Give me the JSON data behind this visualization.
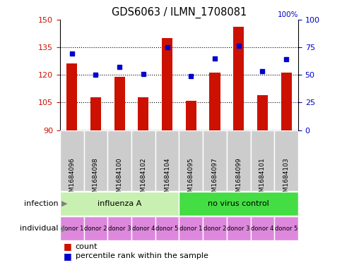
{
  "title": "GDS6063 / ILMN_1708081",
  "samples": [
    "GSM1684096",
    "GSM1684098",
    "GSM1684100",
    "GSM1684102",
    "GSM1684104",
    "GSM1684095",
    "GSM1684097",
    "GSM1684099",
    "GSM1684101",
    "GSM1684103"
  ],
  "counts": [
    126,
    108,
    119,
    108,
    140,
    106,
    121,
    146,
    109,
    121
  ],
  "percentiles": [
    69,
    50,
    57,
    51,
    75,
    49,
    65,
    76,
    53,
    64
  ],
  "ylim_left": [
    90,
    150
  ],
  "ylim_right": [
    0,
    100
  ],
  "yticks_left": [
    90,
    105,
    120,
    135,
    150
  ],
  "yticks_right": [
    0,
    25,
    50,
    75,
    100
  ],
  "hlines": [
    105,
    120,
    135
  ],
  "infection_groups": [
    {
      "label": "influenza A",
      "start": 0,
      "end": 5,
      "color": "#c8f0b0"
    },
    {
      "label": "no virus control",
      "start": 5,
      "end": 10,
      "color": "#44dd44"
    }
  ],
  "individuals": [
    "donor 1",
    "donor 2",
    "donor 3",
    "donor 4",
    "donor 5",
    "donor 1",
    "donor 2",
    "donor 3",
    "donor 4",
    "donor 5"
  ],
  "individual_color": "#dd88dd",
  "bar_color": "#cc1100",
  "dot_color": "#0000cc",
  "bar_width": 0.45,
  "plot_bg": "#ffffff",
  "sample_box_color": "#cccccc",
  "tick_label_color_left": "#cc1100",
  "tick_label_color_right": "#0000cc",
  "label_left_infection": "infection",
  "label_left_individual": "individual",
  "legend_count": "count",
  "legend_pct": "percentile rank within the sample"
}
